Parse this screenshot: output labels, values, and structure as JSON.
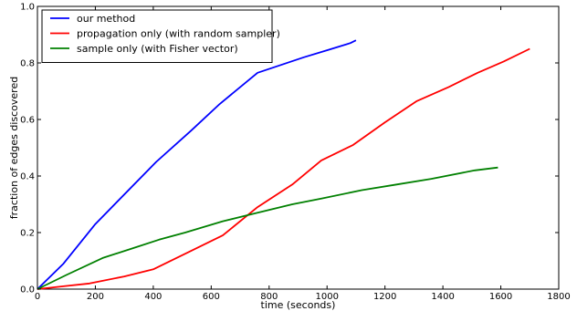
{
  "chart_data": {
    "type": "line",
    "title": "",
    "xlabel": "time (seconds)",
    "ylabel": "fraction of edges discovered",
    "xlim": [
      0,
      1800
    ],
    "ylim": [
      0,
      1.0
    ],
    "xticks": [
      0,
      200,
      400,
      600,
      800,
      1000,
      1200,
      1400,
      1600,
      1800
    ],
    "yticks": [
      0.0,
      0.2,
      0.4,
      0.6,
      0.8,
      1.0
    ],
    "xtick_labels": [
      "0",
      "200",
      "400",
      "600",
      "800",
      "1000",
      "1200",
      "1400",
      "1600",
      "1800"
    ],
    "ytick_labels": [
      "0.0",
      "0.2",
      "0.4",
      "0.6",
      "0.8",
      "1.0"
    ],
    "grid": false,
    "legend_position": "top-left",
    "series": [
      {
        "name": "our method",
        "color": "#0000ff",
        "x": [
          0,
          90,
          200,
          410,
          530,
          630,
          760,
          920,
          1000,
          1080,
          1100
        ],
        "y": [
          0.0,
          0.09,
          0.23,
          0.45,
          0.56,
          0.655,
          0.765,
          0.82,
          0.845,
          0.87,
          0.88
        ]
      },
      {
        "name": "propagation only (with random sampler)",
        "color": "#ff0000",
        "x": [
          0,
          90,
          180,
          300,
          400,
          520,
          640,
          760,
          880,
          980,
          1090,
          1200,
          1310,
          1420,
          1520,
          1610,
          1700
        ],
        "y": [
          0.0,
          0.01,
          0.02,
          0.045,
          0.07,
          0.13,
          0.19,
          0.29,
          0.37,
          0.455,
          0.51,
          0.59,
          0.665,
          0.715,
          0.765,
          0.805,
          0.85
        ]
      },
      {
        "name": "sample only (with Fisher vector)",
        "color": "#008000",
        "x": [
          0,
          100,
          225,
          330,
          420,
          510,
          640,
          760,
          880,
          980,
          1120,
          1240,
          1360,
          1510,
          1590
        ],
        "y": [
          0.0,
          0.05,
          0.11,
          0.145,
          0.175,
          0.2,
          0.24,
          0.27,
          0.3,
          0.32,
          0.35,
          0.37,
          0.39,
          0.42,
          0.43
        ]
      }
    ]
  }
}
